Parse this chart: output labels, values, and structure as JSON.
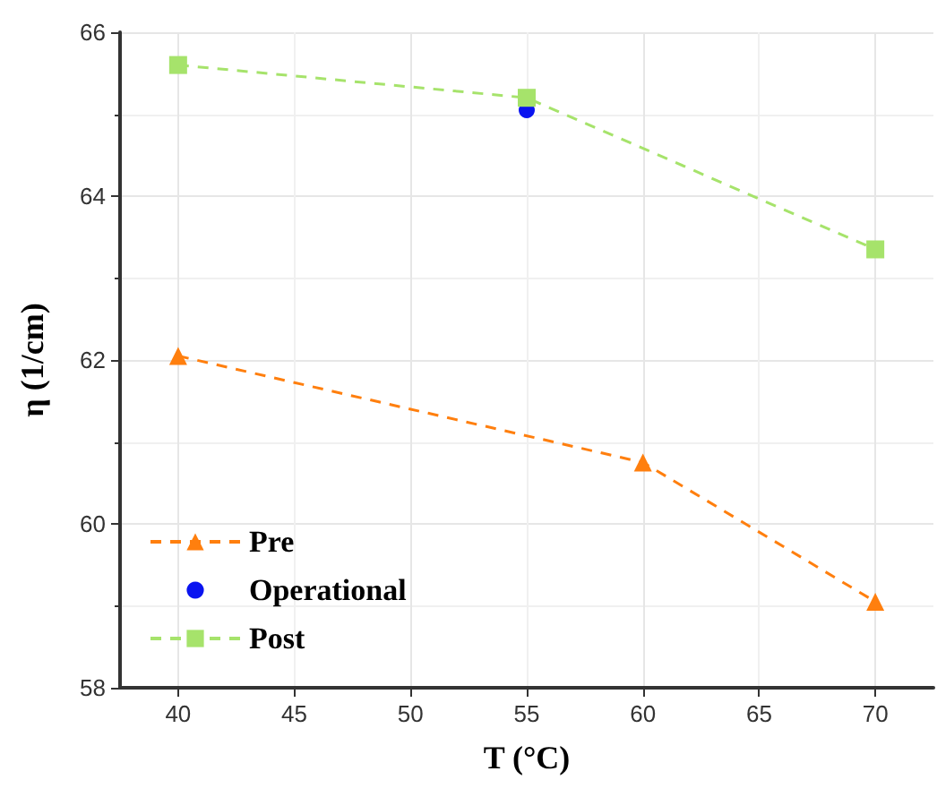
{
  "chart_data": {
    "type": "line",
    "xlabel": "T (°C)",
    "ylabel": "η (1/cm)",
    "xlim": [
      37.5,
      72.5
    ],
    "xticks": [
      40,
      45,
      50,
      55,
      60,
      65,
      70
    ],
    "ylim": [
      58,
      66
    ],
    "yticks": [
      58,
      60,
      62,
      64,
      66
    ],
    "grid": true,
    "legend": "bottom left",
    "series": [
      {
        "name": "Pre",
        "color": "#ff7f0e",
        "x": [
          40,
          60,
          70
        ],
        "values": [
          62.05,
          60.75,
          59.05
        ],
        "marker": "triangle",
        "line_style": "dashed"
      },
      {
        "name": "Operational",
        "type": "scatter",
        "color": "#0a14f0",
        "x": [
          55
        ],
        "values": [
          65.05
        ],
        "marker": "circle"
      },
      {
        "name": "Post",
        "color": "#a6e36b",
        "x": [
          40,
          55,
          70
        ],
        "values": [
          65.6,
          65.2,
          63.35
        ],
        "marker": "square",
        "line_style": "dashed"
      }
    ]
  }
}
